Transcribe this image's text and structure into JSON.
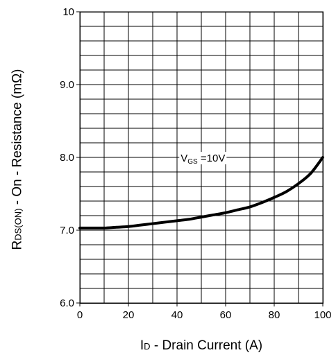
{
  "chart_data": {
    "type": "line",
    "xlabel": {
      "main": "I",
      "sub": "D",
      "rest": " - Drain Current (A)"
    },
    "ylabel": {
      "main": "R",
      "sub": "DS(ON)",
      "rest": " - On - Resistance (mΩ)"
    },
    "xlim": [
      0,
      100
    ],
    "ylim": [
      6.0,
      10.0
    ],
    "x_ticks": [
      0,
      20,
      40,
      60,
      80,
      100
    ],
    "x_tick_labels": [
      "0",
      "20",
      "40",
      "60",
      "80",
      "100"
    ],
    "y_ticks": [
      6.0,
      7.0,
      8.0,
      9.0,
      10.0
    ],
    "y_tick_labels": [
      "6.0",
      "7.0",
      "8.0",
      "9.0",
      "10"
    ],
    "grid": true,
    "grid_x_divisions": 10,
    "grid_y_divisions": 20,
    "annotation": {
      "main": "V",
      "sub": "GS",
      "rest": " =10V",
      "x": 41.5,
      "y": 8.0
    },
    "series": [
      {
        "x": [
          0,
          5,
          10,
          15,
          20,
          25,
          30,
          35,
          40,
          45,
          50,
          55,
          60,
          65,
          70,
          75,
          80,
          85,
          90,
          95,
          100
        ],
        "y": [
          7.03,
          7.03,
          7.03,
          7.04,
          7.05,
          7.07,
          7.09,
          7.11,
          7.13,
          7.15,
          7.18,
          7.21,
          7.24,
          7.28,
          7.32,
          7.38,
          7.45,
          7.53,
          7.64,
          7.78,
          8.0
        ]
      }
    ]
  }
}
